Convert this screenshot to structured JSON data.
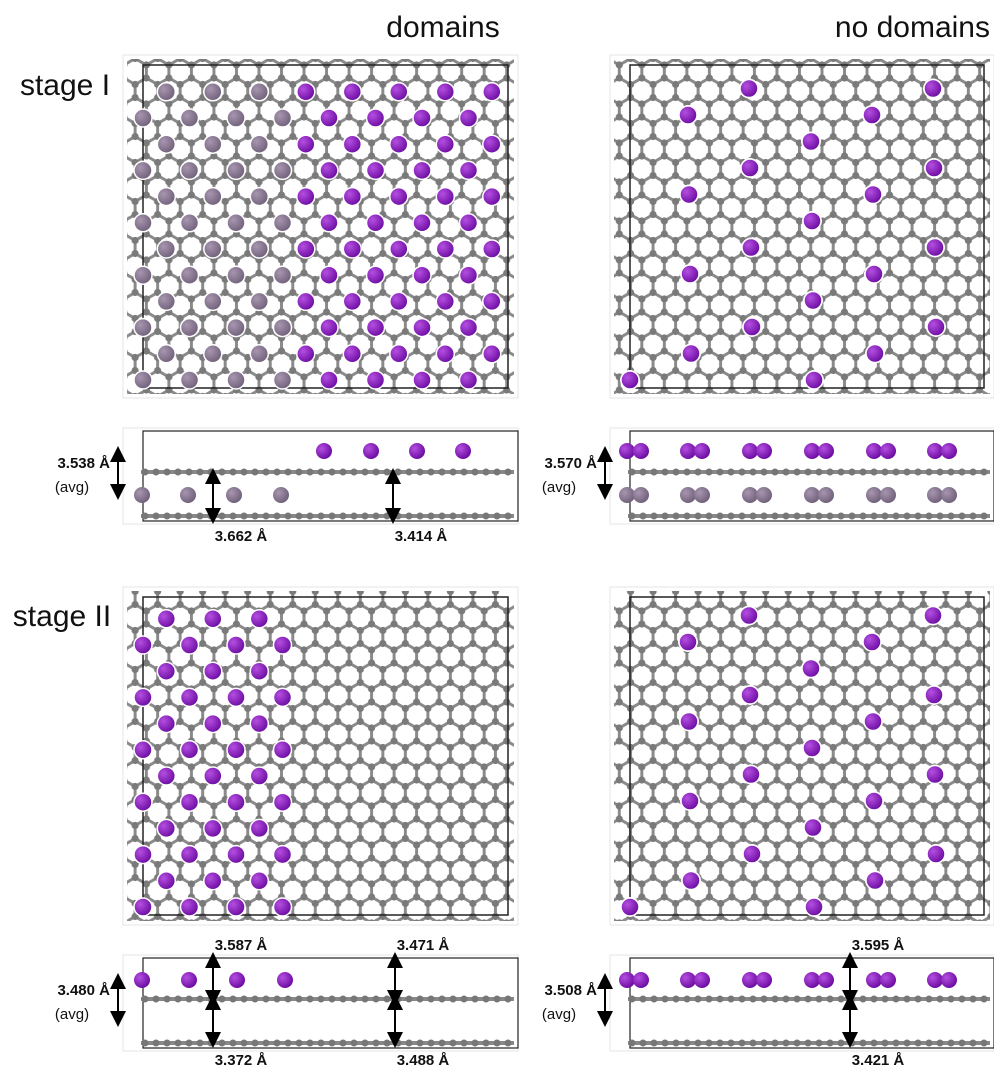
{
  "columns": [
    "domains",
    "no domains"
  ],
  "rows": [
    {
      "label": "stage I",
      "panels": [
        {
          "avg": "3.538 Å",
          "avg_note": "(avg)",
          "measurements": [
            "3.662 Å",
            "3.414 Å"
          ]
        },
        {
          "avg": "3.570 Å",
          "avg_note": "(avg)"
        }
      ]
    },
    {
      "label": "stage II",
      "panels": [
        {
          "avg": "3.480 Å",
          "avg_note": "(avg)",
          "measurements": [
            "3.587 Å",
            "3.471 Å",
            "3.372 Å",
            "3.488 Å"
          ]
        },
        {
          "avg": "3.508 Å",
          "avg_note": "(avg)",
          "measurements": [
            "3.595 Å",
            "3.421 Å"
          ]
        }
      ]
    }
  ]
}
